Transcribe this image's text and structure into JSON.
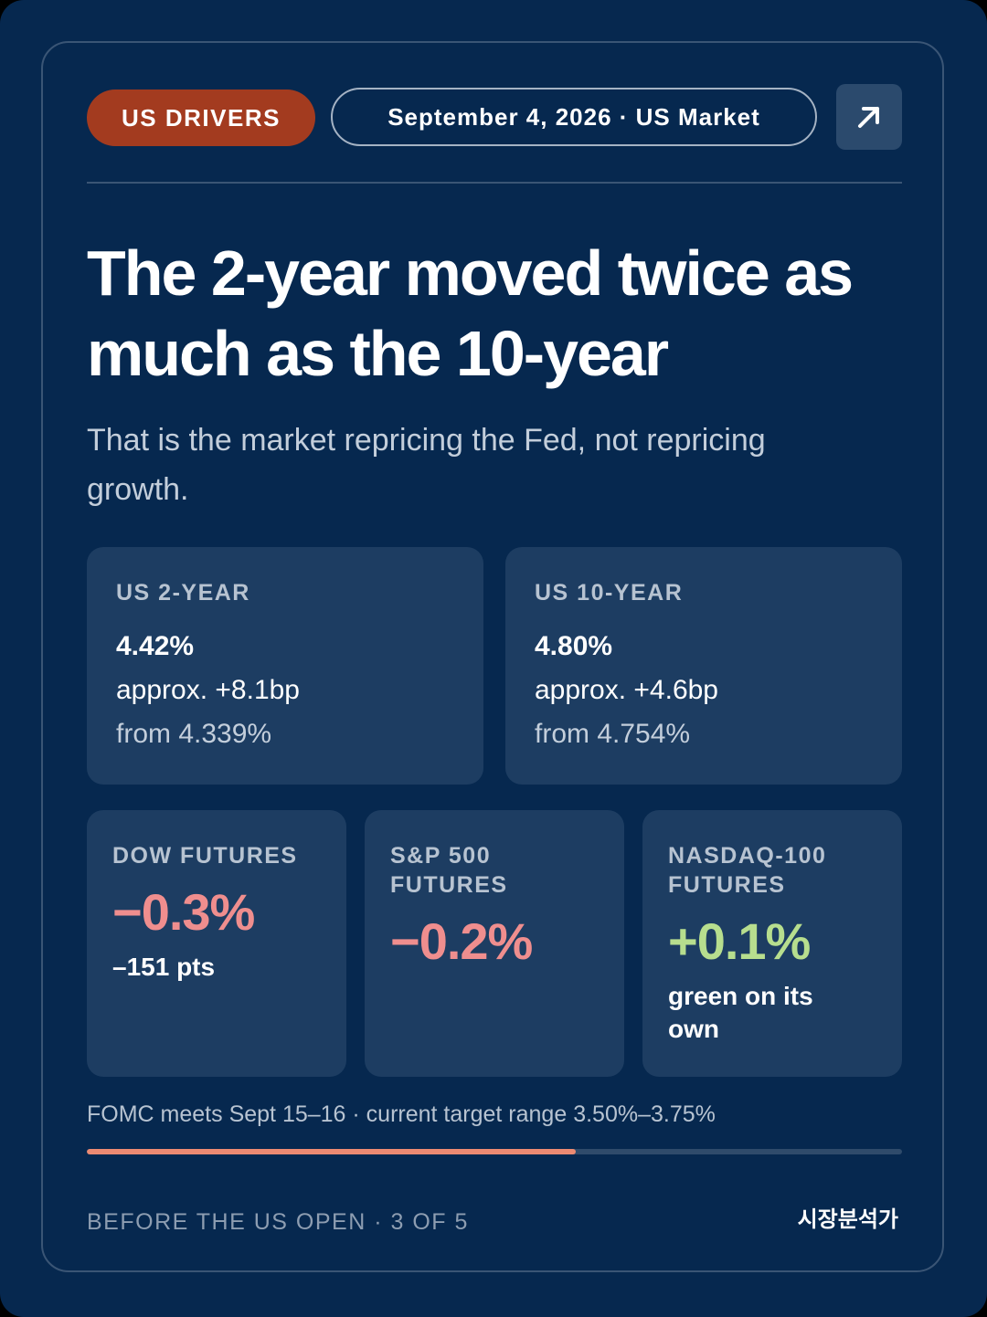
{
  "header": {
    "category": "US DRIVERS",
    "date_market": "September 4, 2026 · US Market",
    "share_icon": "arrow-up-right-icon"
  },
  "headline": "The 2-year moved twice as much as the 10-year",
  "subhead": "That is the market repricing the Fed, not repricing growth.",
  "yields": [
    {
      "label": "US 2-YEAR",
      "value": "4.42%",
      "change": "approx. +8.1bp",
      "from": "from 4.339%"
    },
    {
      "label": "US 10-YEAR",
      "value": "4.80%",
      "change": "approx. +4.6bp",
      "from": "from 4.754%"
    }
  ],
  "futures": [
    {
      "label": "DOW FUTURES",
      "value": "−0.3%",
      "note": "–151 pts",
      "direction": "negative"
    },
    {
      "label": "S&P 500 FUTURES",
      "value": "−0.2%",
      "note": "",
      "direction": "negative"
    },
    {
      "label": "NASDAQ-100 FUTURES",
      "value": "+0.1%",
      "note": "green on its own",
      "direction": "positive"
    }
  ],
  "footnote": "FOMC meets Sept 15–16 · current target range 3.50%–3.75%",
  "progress": {
    "fraction": 0.6
  },
  "footer": {
    "left": "BEFORE THE US OPEN · 3 OF 5",
    "right": "시장분석가"
  },
  "colors": {
    "background": "#06284f",
    "tile": "#1d3d62",
    "category_pill": "#a33b1f",
    "negative": "#ef8e8e",
    "positive": "#b7de8e",
    "progress": "#ec8a72"
  }
}
